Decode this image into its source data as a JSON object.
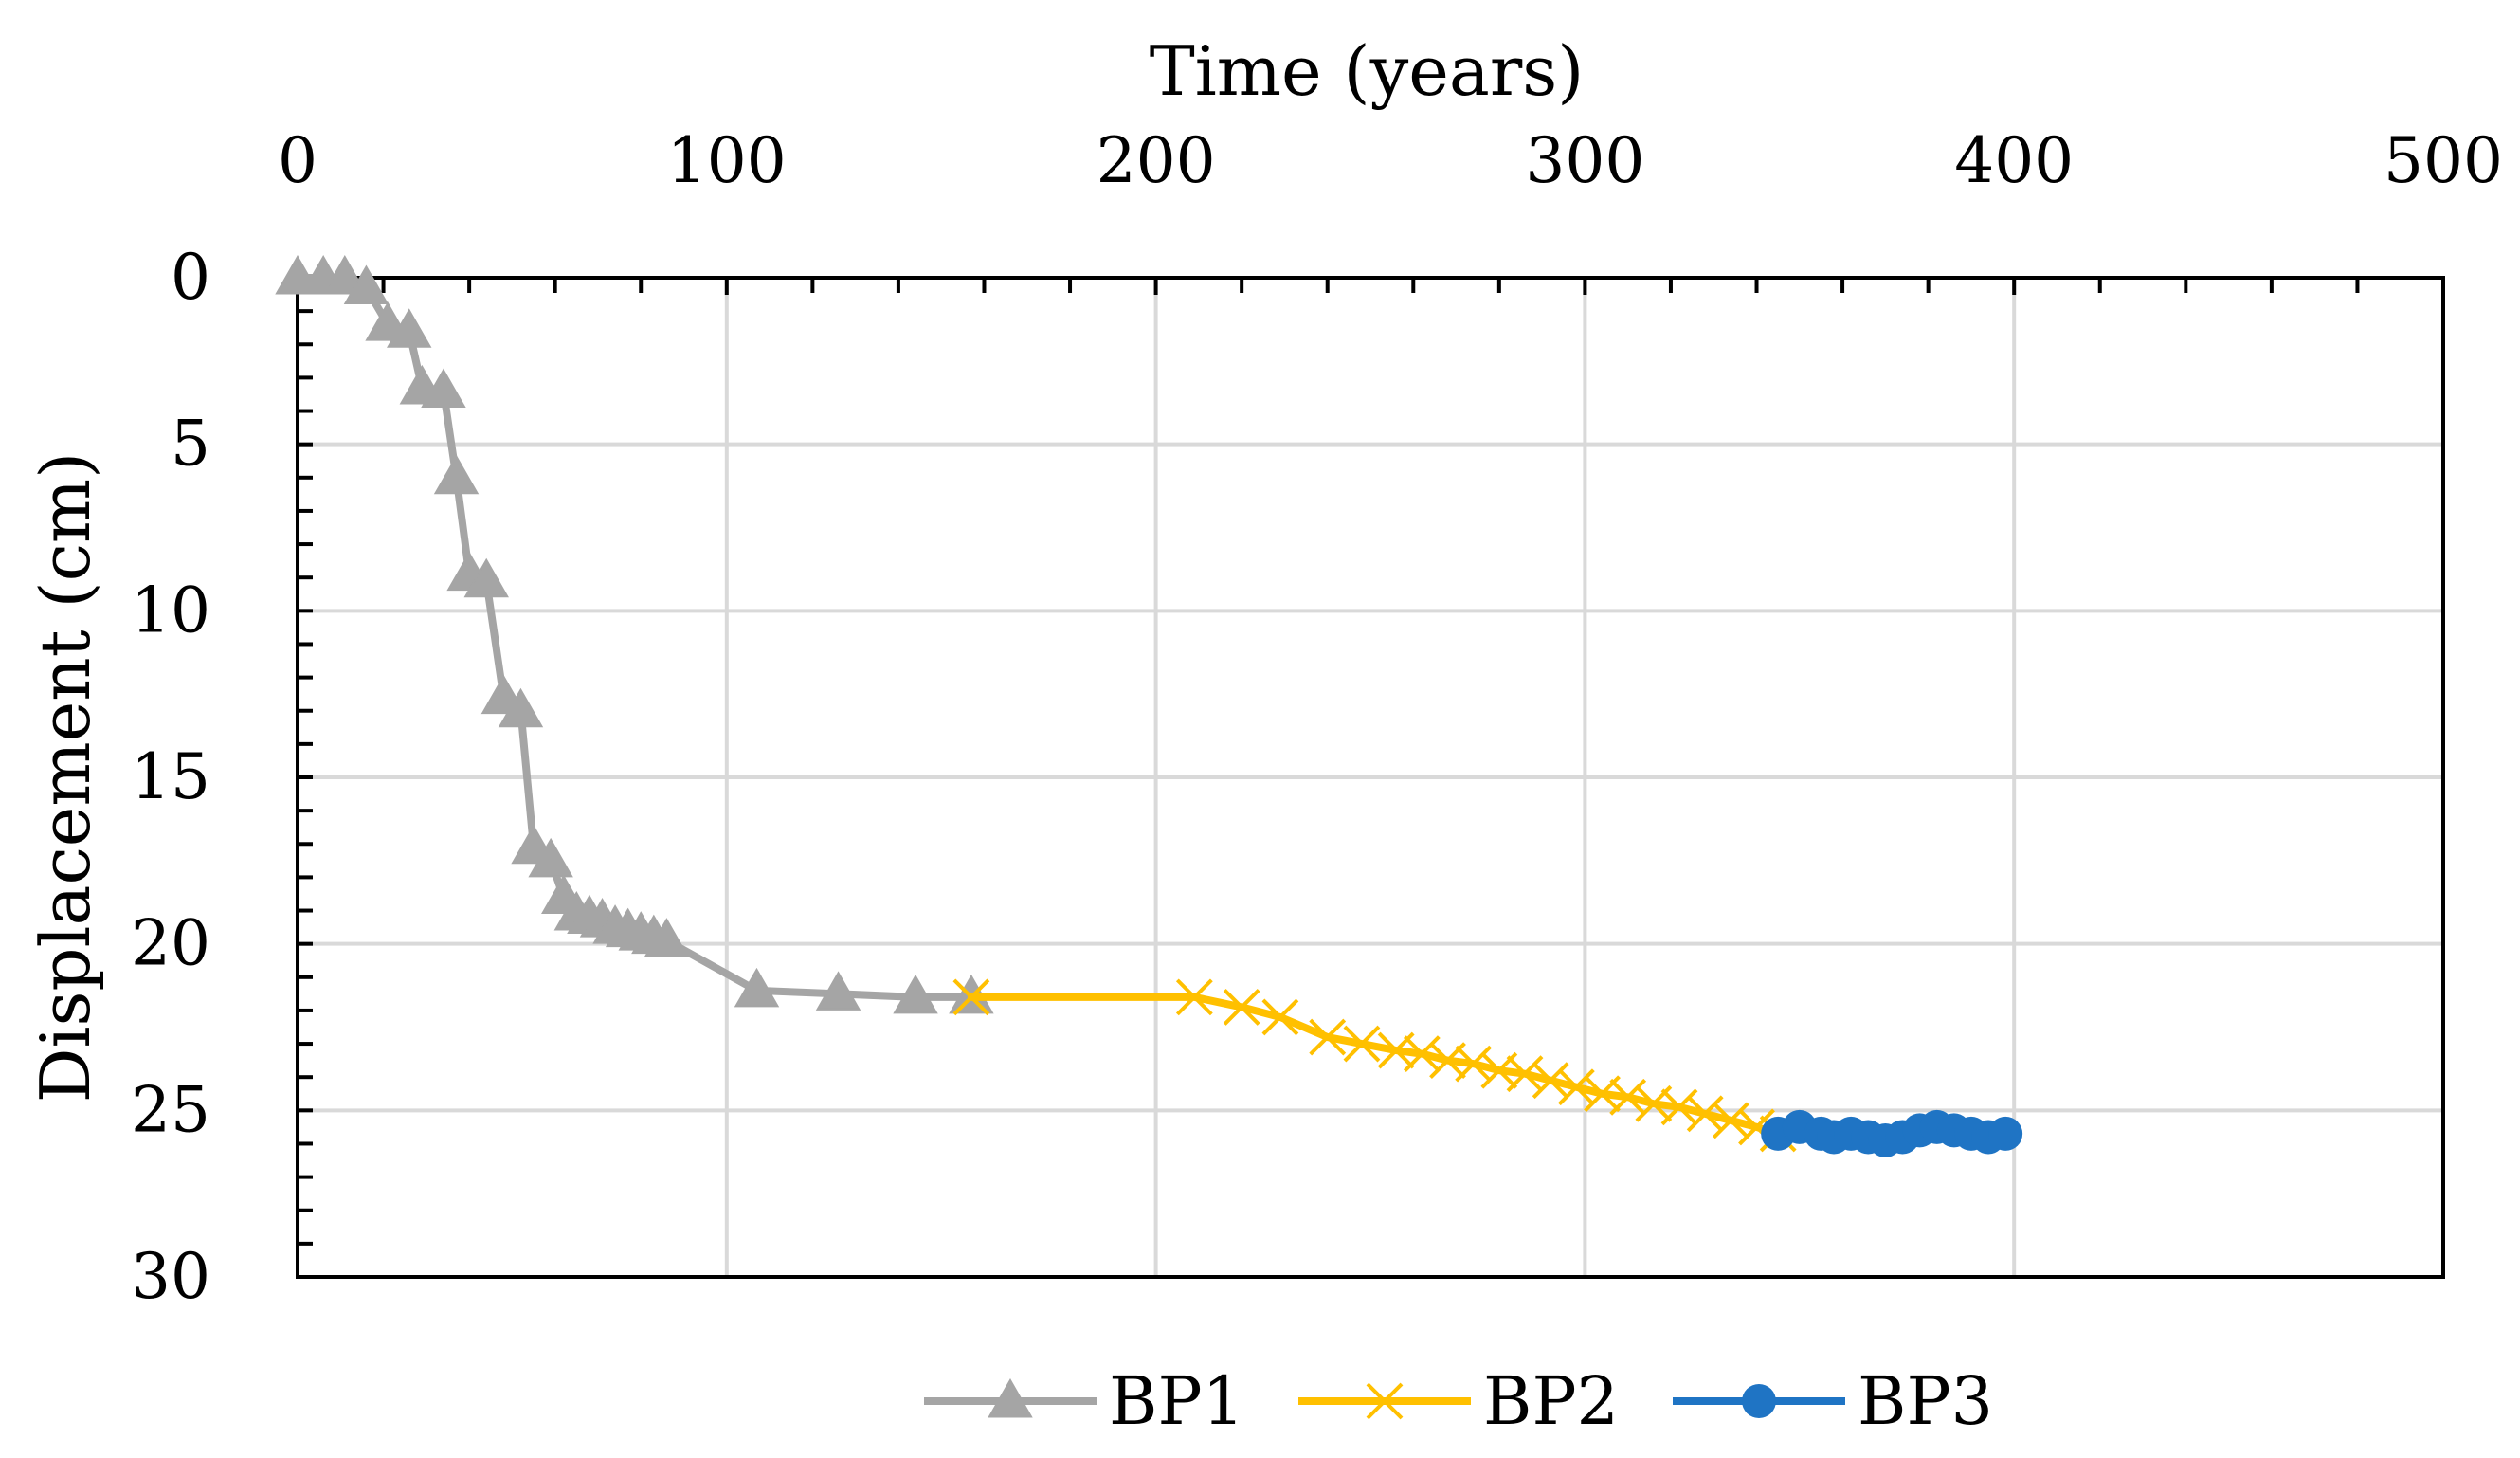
{
  "chart_data": {
    "type": "line",
    "title": "",
    "xlabel": "Time (years)",
    "ylabel": "Displacement (cm)",
    "xlim": [
      0,
      500
    ],
    "ylim": [
      0,
      30
    ],
    "x_ticks": [
      "0",
      "100",
      "200",
      "300",
      "400",
      "500"
    ],
    "y_ticks": [
      "0",
      "5",
      "10",
      "15",
      "20",
      "25",
      "30"
    ],
    "x_axis_position": "top",
    "y_axis_inverted": true,
    "grid": true,
    "legend_position": "bottom",
    "series": [
      {
        "name": "BP1",
        "color": "#a5a5a5",
        "marker": "triangle",
        "x": [
          0,
          6,
          11,
          16,
          21,
          26,
          29,
          34,
          37,
          40,
          44,
          48,
          52,
          55,
          59,
          62,
          65,
          68,
          71,
          74,
          77,
          80,
          83,
          86,
          107,
          126,
          144,
          157
        ],
        "y": [
          0,
          0,
          0,
          0.3,
          1.4,
          1.6,
          3.3,
          3.4,
          6.0,
          8.9,
          9.1,
          12.6,
          13.0,
          17.1,
          17.5,
          18.6,
          19.1,
          19.2,
          19.3,
          19.5,
          19.6,
          19.7,
          19.8,
          19.9,
          21.4,
          21.5,
          21.6,
          21.6
        ]
      },
      {
        "name": "BP2",
        "color": "#ffc000",
        "marker": "x",
        "x": [
          157,
          209,
          220,
          229,
          240,
          248,
          256,
          262,
          268,
          274,
          280,
          286,
          292,
          298,
          304,
          310,
          316,
          322,
          328,
          334,
          340,
          345
        ],
        "y": [
          21.6,
          21.6,
          21.9,
          22.2,
          22.8,
          23.0,
          23.2,
          23.3,
          23.5,
          23.6,
          23.8,
          23.9,
          24.1,
          24.3,
          24.5,
          24.6,
          24.8,
          24.9,
          25.1,
          25.3,
          25.5,
          25.7
        ]
      },
      {
        "name": "BP3",
        "color": "#1f74c4",
        "marker": "circle",
        "x": [
          345,
          350,
          355,
          358,
          362,
          366,
          370,
          374,
          378,
          382,
          386,
          390,
          394,
          398
        ],
        "y": [
          25.7,
          25.5,
          25.7,
          25.8,
          25.7,
          25.8,
          25.9,
          25.8,
          25.6,
          25.5,
          25.6,
          25.7,
          25.8,
          25.7
        ]
      }
    ]
  }
}
